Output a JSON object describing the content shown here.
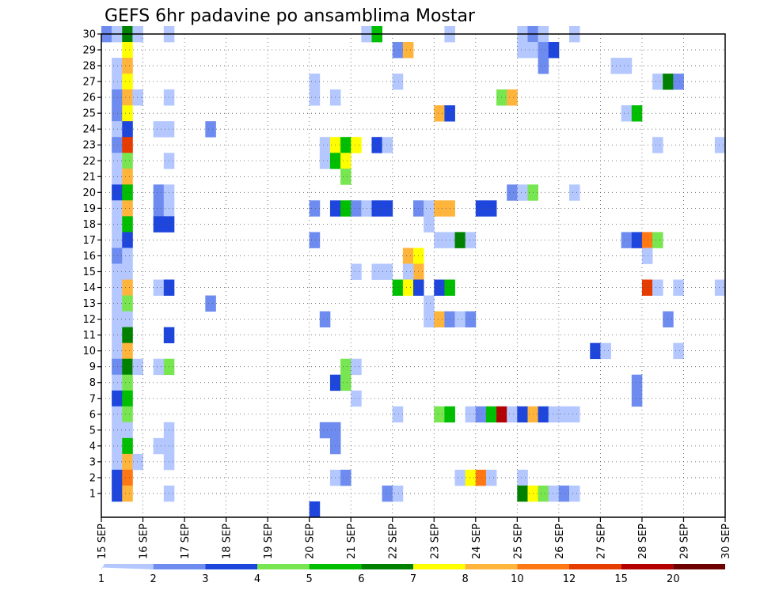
{
  "chart_data": {
    "type": "heatmap",
    "title": "GEFS 6hr padavine po ansamblima Mostar",
    "xlabel": "",
    "ylabel": "",
    "x_ticks": [
      {
        "day": 15,
        "label": "15 SEP"
      },
      {
        "day": 16,
        "label": "16 SEP"
      },
      {
        "day": 17,
        "label": "17 SEP"
      },
      {
        "day": 18,
        "label": "18 SEP"
      },
      {
        "day": 19,
        "label": "19 SEP"
      },
      {
        "day": 20,
        "label": "20 SEP"
      },
      {
        "day": 21,
        "label": "21 SEP"
      },
      {
        "day": 22,
        "label": "22 SEP"
      },
      {
        "day": 23,
        "label": "23 SEP"
      },
      {
        "day": 24,
        "label": "24 SEP"
      },
      {
        "day": 25,
        "label": "25 SEP"
      },
      {
        "day": 26,
        "label": "26 SEP"
      },
      {
        "day": 27,
        "label": "27 SEP"
      },
      {
        "day": 28,
        "label": "28 SEP"
      },
      {
        "day": 29,
        "label": "29 SEP"
      },
      {
        "day": 30,
        "label": "30 SEP"
      }
    ],
    "xlim": [
      15,
      30
    ],
    "ylim": [
      0,
      30
    ],
    "y_ticks": [
      1,
      2,
      3,
      4,
      5,
      6,
      7,
      8,
      9,
      10,
      11,
      12,
      13,
      14,
      15,
      16,
      17,
      18,
      19,
      20,
      21,
      22,
      23,
      24,
      25,
      26,
      27,
      28,
      29,
      30
    ],
    "grid": true,
    "colorbar": {
      "labels": [
        "1",
        "2",
        "3",
        "4",
        "5",
        "6",
        "7",
        "8",
        "10",
        "12",
        "15",
        "20"
      ],
      "colors": [
        "#b4c8ff",
        "#6e8cf0",
        "#1e46dc",
        "#78e650",
        "#00be00",
        "#008200",
        "#ffff00",
        "#ffb43c",
        "#ff7814",
        "#e63c00",
        "#b40000",
        "#6e0000"
      ]
    },
    "cells_note": "Each cell: member (y), slot = 6-hour step index from 15 SEP 00z (x), level = colour index 0..11 into colorbar.colors",
    "cells": [
      [
        30,
        0,
        1
      ],
      [
        30,
        1,
        0
      ],
      [
        30,
        2,
        5
      ],
      [
        30,
        3,
        0
      ],
      [
        30,
        6,
        0
      ],
      [
        30,
        25,
        0
      ],
      [
        30,
        26,
        4
      ],
      [
        30,
        33,
        0
      ],
      [
        30,
        40,
        0
      ],
      [
        30,
        41,
        1
      ],
      [
        30,
        42,
        0
      ],
      [
        30,
        45,
        0
      ],
      [
        29,
        2,
        6
      ],
      [
        29,
        28,
        1
      ],
      [
        29,
        29,
        7
      ],
      [
        29,
        40,
        0
      ],
      [
        29,
        41,
        0
      ],
      [
        29,
        42,
        1
      ],
      [
        29,
        43,
        2
      ],
      [
        28,
        1,
        0
      ],
      [
        28,
        2,
        7
      ],
      [
        28,
        42,
        1
      ],
      [
        28,
        49,
        0
      ],
      [
        28,
        50,
        0
      ],
      [
        27,
        1,
        0
      ],
      [
        27,
        2,
        6
      ],
      [
        27,
        20,
        0
      ],
      [
        27,
        28,
        0
      ],
      [
        27,
        53,
        0
      ],
      [
        27,
        54,
        5
      ],
      [
        27,
        55,
        1
      ],
      [
        26,
        1,
        1
      ],
      [
        26,
        2,
        7
      ],
      [
        26,
        3,
        0
      ],
      [
        26,
        6,
        0
      ],
      [
        26,
        20,
        0
      ],
      [
        26,
        22,
        0
      ],
      [
        26,
        38,
        3
      ],
      [
        26,
        39,
        7
      ],
      [
        25,
        1,
        1
      ],
      [
        25,
        2,
        6
      ],
      [
        25,
        32,
        7
      ],
      [
        25,
        33,
        2
      ],
      [
        25,
        50,
        0
      ],
      [
        25,
        51,
        4
      ],
      [
        24,
        1,
        0
      ],
      [
        24,
        2,
        2
      ],
      [
        24,
        5,
        0
      ],
      [
        24,
        6,
        0
      ],
      [
        24,
        10,
        1
      ],
      [
        23,
        1,
        1
      ],
      [
        23,
        2,
        9
      ],
      [
        23,
        21,
        0
      ],
      [
        23,
        22,
        6
      ],
      [
        23,
        23,
        4
      ],
      [
        23,
        24,
        6
      ],
      [
        23,
        26,
        2
      ],
      [
        23,
        27,
        0
      ],
      [
        23,
        53,
        0
      ],
      [
        23,
        59,
        0
      ],
      [
        22,
        1,
        0
      ],
      [
        22,
        2,
        3
      ],
      [
        22,
        6,
        0
      ],
      [
        22,
        21,
        0
      ],
      [
        22,
        22,
        4
      ],
      [
        22,
        23,
        6
      ],
      [
        21,
        1,
        0
      ],
      [
        21,
        2,
        7
      ],
      [
        21,
        23,
        3
      ],
      [
        20,
        1,
        2
      ],
      [
        20,
        2,
        4
      ],
      [
        20,
        5,
        1
      ],
      [
        20,
        6,
        0
      ],
      [
        20,
        39,
        1
      ],
      [
        20,
        40,
        0
      ],
      [
        20,
        41,
        3
      ],
      [
        20,
        45,
        0
      ],
      [
        19,
        1,
        0
      ],
      [
        19,
        2,
        7
      ],
      [
        19,
        5,
        1
      ],
      [
        19,
        6,
        0
      ],
      [
        19,
        20,
        1
      ],
      [
        19,
        22,
        2
      ],
      [
        19,
        23,
        4
      ],
      [
        19,
        24,
        1
      ],
      [
        19,
        25,
        0
      ],
      [
        19,
        26,
        2
      ],
      [
        19,
        27,
        2
      ],
      [
        19,
        30,
        1
      ],
      [
        19,
        31,
        0
      ],
      [
        19,
        32,
        7
      ],
      [
        19,
        33,
        7
      ],
      [
        19,
        36,
        2
      ],
      [
        19,
        37,
        2
      ],
      [
        18,
        1,
        0
      ],
      [
        18,
        2,
        4
      ],
      [
        18,
        5,
        2
      ],
      [
        18,
        6,
        2
      ],
      [
        18,
        31,
        0
      ],
      [
        17,
        1,
        0
      ],
      [
        17,
        2,
        2
      ],
      [
        17,
        20,
        1
      ],
      [
        17,
        32,
        0
      ],
      [
        17,
        33,
        0
      ],
      [
        17,
        34,
        5
      ],
      [
        17,
        35,
        0
      ],
      [
        17,
        50,
        1
      ],
      [
        17,
        51,
        2
      ],
      [
        17,
        52,
        8
      ],
      [
        17,
        53,
        3
      ],
      [
        16,
        1,
        1
      ],
      [
        16,
        2,
        0
      ],
      [
        16,
        29,
        7
      ],
      [
        16,
        30,
        6
      ],
      [
        16,
        52,
        0
      ],
      [
        15,
        1,
        0
      ],
      [
        15,
        2,
        0
      ],
      [
        15,
        24,
        0
      ],
      [
        15,
        26,
        0
      ],
      [
        15,
        27,
        0
      ],
      [
        15,
        30,
        7
      ],
      [
        15,
        29,
        0
      ],
      [
        14,
        1,
        0
      ],
      [
        14,
        2,
        7
      ],
      [
        14,
        5,
        0
      ],
      [
        14,
        6,
        2
      ],
      [
        14,
        28,
        4
      ],
      [
        14,
        29,
        6
      ],
      [
        14,
        30,
        2
      ],
      [
        14,
        32,
        2
      ],
      [
        14,
        33,
        4
      ],
      [
        14,
        52,
        9
      ],
      [
        14,
        53,
        0
      ],
      [
        14,
        55,
        0
      ],
      [
        14,
        59,
        0
      ],
      [
        13,
        1,
        0
      ],
      [
        13,
        2,
        3
      ],
      [
        13,
        10,
        1
      ],
      [
        13,
        31,
        0
      ],
      [
        12,
        1,
        0
      ],
      [
        12,
        2,
        0
      ],
      [
        12,
        31,
        0
      ],
      [
        12,
        32,
        7
      ],
      [
        12,
        33,
        1
      ],
      [
        12,
        34,
        0
      ],
      [
        12,
        35,
        1
      ],
      [
        12,
        21,
        1
      ],
      [
        12,
        54,
        1
      ],
      [
        11,
        1,
        0
      ],
      [
        11,
        2,
        5
      ],
      [
        11,
        6,
        2
      ],
      [
        10,
        1,
        0
      ],
      [
        10,
        2,
        7
      ],
      [
        10,
        47,
        2
      ],
      [
        10,
        48,
        0
      ],
      [
        10,
        55,
        0
      ],
      [
        9,
        1,
        1
      ],
      [
        9,
        2,
        5
      ],
      [
        9,
        3,
        0
      ],
      [
        9,
        5,
        0
      ],
      [
        9,
        6,
        3
      ],
      [
        9,
        23,
        3
      ],
      [
        9,
        24,
        0
      ],
      [
        8,
        1,
        0
      ],
      [
        8,
        2,
        3
      ],
      [
        8,
        22,
        2
      ],
      [
        8,
        23,
        3
      ],
      [
        8,
        51,
        1
      ],
      [
        7,
        1,
        2
      ],
      [
        7,
        2,
        4
      ],
      [
        7,
        24,
        0
      ],
      [
        7,
        51,
        1
      ],
      [
        6,
        1,
        0
      ],
      [
        6,
        2,
        3
      ],
      [
        6,
        28,
        0
      ],
      [
        6,
        32,
        3
      ],
      [
        6,
        33,
        4
      ],
      [
        6,
        35,
        0
      ],
      [
        6,
        36,
        1
      ],
      [
        6,
        37,
        4
      ],
      [
        6,
        38,
        10
      ],
      [
        6,
        39,
        0
      ],
      [
        6,
        40,
        2
      ],
      [
        6,
        41,
        7
      ],
      [
        6,
        42,
        2
      ],
      [
        6,
        43,
        0
      ],
      [
        6,
        44,
        0
      ],
      [
        6,
        45,
        0
      ],
      [
        5,
        1,
        0
      ],
      [
        5,
        2,
        0
      ],
      [
        5,
        6,
        0
      ],
      [
        5,
        21,
        1
      ],
      [
        5,
        22,
        1
      ],
      [
        4,
        1,
        0
      ],
      [
        4,
        2,
        4
      ],
      [
        4,
        5,
        0
      ],
      [
        4,
        6,
        0
      ],
      [
        4,
        22,
        1
      ],
      [
        3,
        1,
        0
      ],
      [
        3,
        2,
        7
      ],
      [
        3,
        3,
        0
      ],
      [
        3,
        6,
        0
      ],
      [
        2,
        1,
        2
      ],
      [
        2,
        2,
        8
      ],
      [
        2,
        22,
        0
      ],
      [
        2,
        23,
        1
      ],
      [
        2,
        34,
        0
      ],
      [
        2,
        35,
        6
      ],
      [
        2,
        36,
        8
      ],
      [
        2,
        37,
        0
      ],
      [
        2,
        40,
        0
      ],
      [
        1,
        1,
        2
      ],
      [
        1,
        2,
        7
      ],
      [
        1,
        6,
        0
      ],
      [
        1,
        27,
        1
      ],
      [
        1,
        28,
        0
      ],
      [
        1,
        40,
        5
      ],
      [
        1,
        41,
        6
      ],
      [
        1,
        42,
        3
      ],
      [
        1,
        43,
        0
      ],
      [
        1,
        44,
        1
      ],
      [
        1,
        45,
        0
      ],
      [
        0,
        20,
        2
      ]
    ]
  }
}
